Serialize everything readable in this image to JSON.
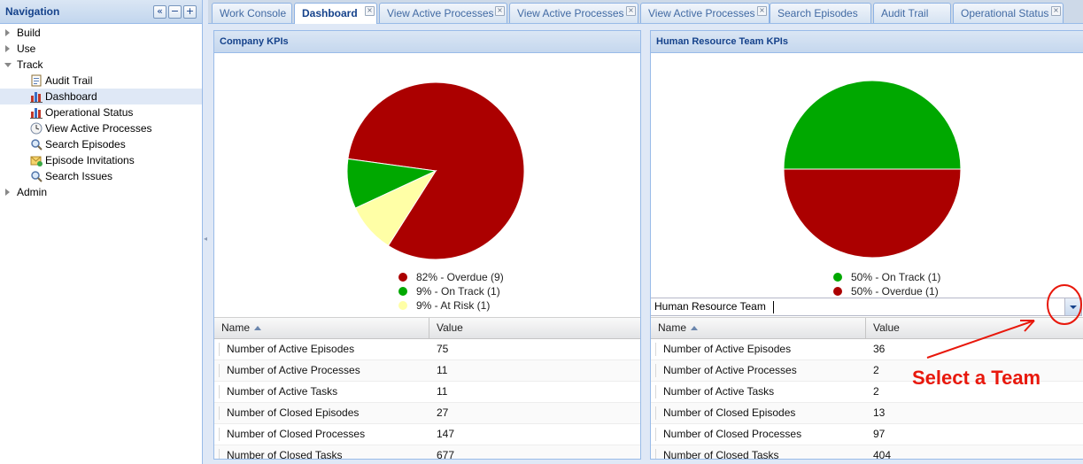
{
  "sidebar": {
    "title": "Navigation",
    "tools": [
      "«",
      "−",
      "+"
    ],
    "nodes": [
      {
        "label": "Build",
        "level": 0,
        "expanded": false
      },
      {
        "label": "Use",
        "level": 0,
        "expanded": false
      },
      {
        "label": "Track",
        "level": 0,
        "expanded": true
      },
      {
        "label": "Audit Trail",
        "level": 1,
        "icon": "audit-trail-icon"
      },
      {
        "label": "Dashboard",
        "level": 1,
        "icon": "bar-chart-icon",
        "selected": true
      },
      {
        "label": "Operational Status",
        "level": 1,
        "icon": "bar-chart-icon"
      },
      {
        "label": "View Active Processes",
        "level": 1,
        "icon": "clock-icon"
      },
      {
        "label": "Search Episodes",
        "level": 1,
        "icon": "magnifier-icon"
      },
      {
        "label": "Episode Invitations",
        "level": 1,
        "icon": "invitation-icon"
      },
      {
        "label": "Search Issues",
        "level": 1,
        "icon": "magnifier-icon"
      },
      {
        "label": "Admin",
        "level": 0,
        "expanded": false
      }
    ]
  },
  "tabs": [
    {
      "label": "Work Console",
      "closable": false
    },
    {
      "label": "Dashboard",
      "closable": true,
      "active": true
    },
    {
      "label": "View Active Processes",
      "closable": true
    },
    {
      "label": "View Active Processes",
      "closable": true
    },
    {
      "label": "View Active Processes",
      "closable": true
    },
    {
      "label": "Search Episodes",
      "closable": false
    },
    {
      "label": "Audit Trail",
      "closable": false
    },
    {
      "label": "Operational Status",
      "closable": true
    }
  ],
  "colors": {
    "overdue": "#ab0000",
    "on_track": "#00a800",
    "at_risk": "#ffffa6",
    "accent": "#15428b",
    "annotation": "#e8180c"
  },
  "panels": {
    "company": {
      "title": "Company KPIs",
      "pie": [
        {
          "label": "82% - Overdue (9)",
          "value": 9,
          "color": "#ab0000"
        },
        {
          "label": "9% - On Track (1)",
          "value": 1,
          "color": "#00a800"
        },
        {
          "label": "9% - At Risk (1)",
          "value": 1,
          "color": "#ffffa6"
        }
      ],
      "grid": {
        "col_name": "Name",
        "col_value": "Value",
        "rows": [
          {
            "name": "Number of Active Episodes",
            "value": "75"
          },
          {
            "name": "Number of Active Processes",
            "value": "11"
          },
          {
            "name": "Number of Active Tasks",
            "value": "11"
          },
          {
            "name": "Number of Closed Episodes",
            "value": "27"
          },
          {
            "name": "Number of Closed Processes",
            "value": "147"
          },
          {
            "name": "Number of Closed Tasks",
            "value": "677"
          }
        ]
      }
    },
    "hr": {
      "title": "Human Resource Team KPIs",
      "pie": [
        {
          "label": "50% - On Track (1)",
          "value": 1,
          "color": "#00a800"
        },
        {
          "label": "50% - Overdue (1)",
          "value": 1,
          "color": "#ab0000"
        }
      ],
      "team_select": {
        "value": "Human Resource Team"
      },
      "grid": {
        "col_name": "Name",
        "col_value": "Value",
        "rows": [
          {
            "name": "Number of Active Episodes",
            "value": "36"
          },
          {
            "name": "Number of Active Processes",
            "value": "2"
          },
          {
            "name": "Number of Active Tasks",
            "value": "2"
          },
          {
            "name": "Number of Closed Episodes",
            "value": "13"
          },
          {
            "name": "Number of Closed Processes",
            "value": "97"
          },
          {
            "name": "Number of Closed Tasks",
            "value": "404"
          }
        ]
      }
    }
  },
  "annotation": {
    "text": "Select a Team"
  }
}
